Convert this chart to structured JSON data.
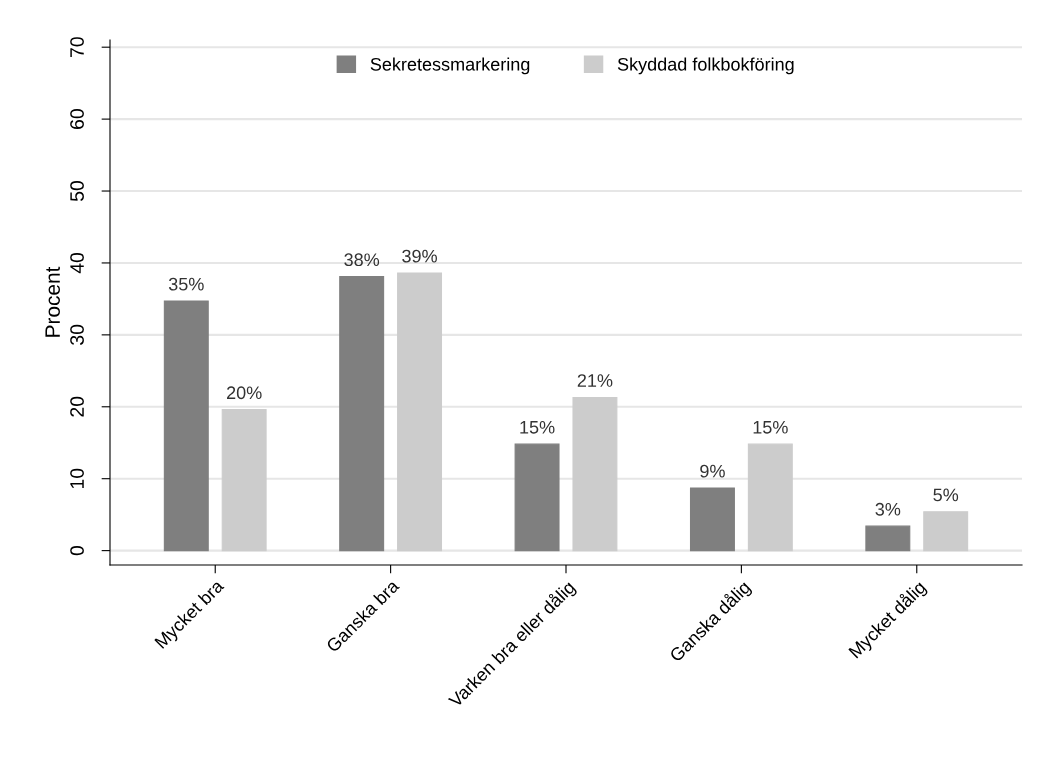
{
  "chart_data": {
    "type": "bar",
    "ylabel": "Procent",
    "categories": [
      "Mycket bra",
      "Ganska bra",
      "Varken bra eller dålig",
      "Ganska dålig",
      "Mycket dålig"
    ],
    "series": [
      {
        "name": "Sekretessmarkering",
        "color": "#7f7f7f",
        "values": [
          34.7,
          38.1,
          14.8,
          8.7,
          3.4
        ],
        "value_labels": [
          "35%",
          "38%",
          "15%",
          "9%",
          "3%"
        ]
      },
      {
        "name": "Skyddad folkbokföring",
        "color": "#cccccc",
        "values": [
          19.6,
          38.6,
          21.3,
          14.8,
          5.4
        ],
        "value_labels": [
          "20%",
          "39%",
          "21%",
          "15%",
          "5%"
        ]
      }
    ],
    "ylim": [
      -2,
      71
    ],
    "yticks": [
      0,
      10,
      20,
      30,
      40,
      50,
      60,
      70
    ],
    "grid": "y",
    "legend": "top"
  }
}
